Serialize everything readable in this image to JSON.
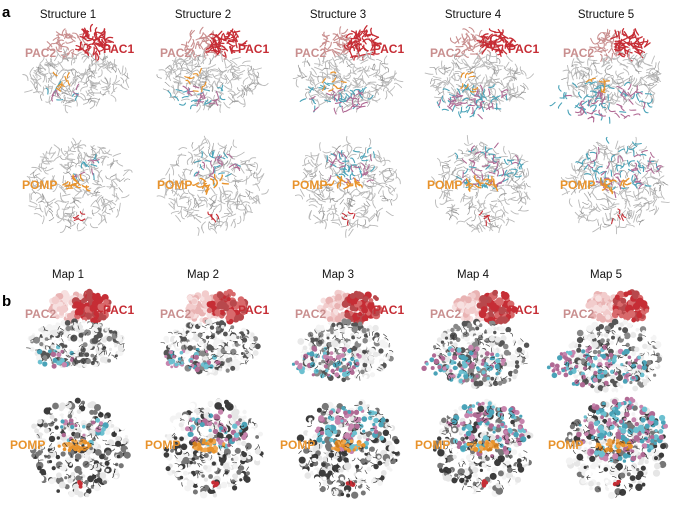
{
  "panels": [
    {
      "letter": "a",
      "columns": [
        "Structure 1",
        "Structure 2",
        "Structure 3",
        "Structure 4",
        "Structure 5"
      ],
      "side_views": [
        {
          "pac2": "PAC2",
          "pac1": "PAC1"
        },
        {
          "pac2": "PAC2",
          "pac1": "PAC1"
        },
        {
          "pac2": "PAC2",
          "pac1": "PAC1"
        },
        {
          "pac2": "PAC2",
          "pac1": "PAC1"
        },
        {
          "pac2": "PAC2",
          "pac1": ""
        }
      ],
      "top_view_label": "POMP"
    },
    {
      "letter": "b",
      "columns": [
        "Map 1",
        "Map 2",
        "Map 3",
        "Map 4",
        "Map 5"
      ],
      "side_views": [
        {
          "pac2": "PAC2",
          "pac1": "PAC1"
        },
        {
          "pac2": "PAC2",
          "pac1": "PAC1"
        },
        {
          "pac2": "PAC2",
          "pac1": "PAC1"
        },
        {
          "pac2": "PAC2",
          "pac1": "PAC1"
        },
        {
          "pac2": "PAC2",
          "pac1": ""
        }
      ],
      "top_view_label": "POMP"
    }
  ],
  "colors": {
    "pac1": "#c62d35",
    "pac2": "#c98f8f",
    "pomp": "#e8932c",
    "alpha_blue": "#4aa3b8",
    "beta_mauve": "#b06a94",
    "core_gray": "#b9b9b9"
  }
}
